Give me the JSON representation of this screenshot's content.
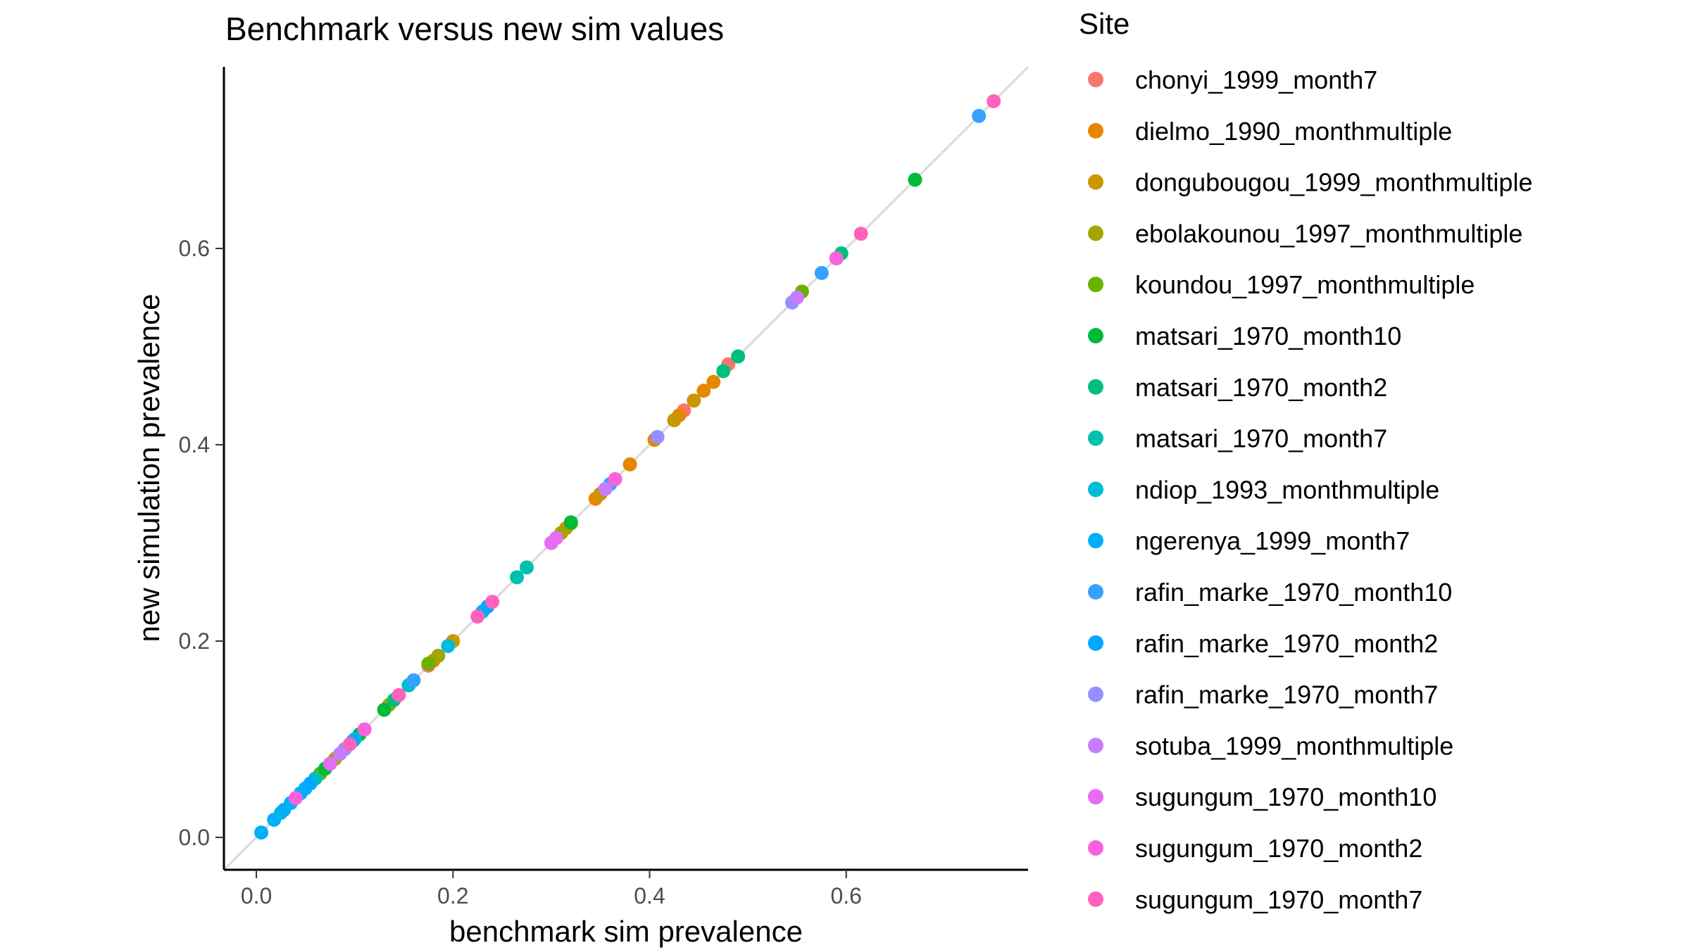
{
  "chart_data": {
    "type": "scatter",
    "title": "Benchmark versus new sim values",
    "xlabel": "benchmark sim prevalence",
    "ylabel": "new simulation prevalence",
    "xlim": [
      -0.033,
      0.785
    ],
    "ylim": [
      -0.033,
      0.785
    ],
    "xticks": [
      0.0,
      0.2,
      0.4,
      0.6
    ],
    "yticks": [
      0.0,
      0.2,
      0.4,
      0.6
    ],
    "x_tick_labels": [
      "0.0",
      "0.2",
      "0.4",
      "0.6"
    ],
    "y_tick_labels": [
      "0.0",
      "0.2",
      "0.4",
      "0.6"
    ],
    "reference_line": {
      "type": "identity",
      "color": "#d9d9d9"
    },
    "grid": false,
    "legend_title": "Site",
    "legend_position": "right",
    "series": [
      {
        "name": "chonyi_1999_month7",
        "color": "#F8766D",
        "values": [
          [
            0.155,
            0.155
          ],
          [
            0.175,
            0.175
          ],
          [
            0.435,
            0.435
          ],
          [
            0.48,
            0.482
          ]
        ]
      },
      {
        "name": "dielmo_1990_monthmultiple",
        "color": "#E58700",
        "values": [
          [
            0.18,
            0.18
          ],
          [
            0.345,
            0.345
          ],
          [
            0.38,
            0.38
          ],
          [
            0.405,
            0.405
          ],
          [
            0.43,
            0.43
          ],
          [
            0.455,
            0.455
          ],
          [
            0.465,
            0.464
          ]
        ]
      },
      {
        "name": "dongubougou_1999_monthmultiple",
        "color": "#C99800",
        "values": [
          [
            0.2,
            0.2
          ],
          [
            0.315,
            0.315
          ],
          [
            0.35,
            0.35
          ],
          [
            0.425,
            0.425
          ],
          [
            0.445,
            0.445
          ]
        ]
      },
      {
        "name": "ebolakounou_1997_monthmultiple",
        "color": "#A3A500",
        "values": [
          [
            0.08,
            0.08
          ],
          [
            0.135,
            0.135
          ],
          [
            0.185,
            0.185
          ],
          [
            0.31,
            0.31
          ]
        ]
      },
      {
        "name": "koundou_1997_monthmultiple",
        "color": "#6BB100",
        "values": [
          [
            0.065,
            0.065
          ],
          [
            0.175,
            0.177
          ],
          [
            0.32,
            0.32
          ],
          [
            0.555,
            0.556
          ]
        ]
      },
      {
        "name": "matsari_1970_month10",
        "color": "#00BA38",
        "values": [
          [
            0.07,
            0.07
          ],
          [
            0.105,
            0.105
          ],
          [
            0.13,
            0.13
          ],
          [
            0.32,
            0.321
          ],
          [
            0.67,
            0.67
          ]
        ]
      },
      {
        "name": "matsari_1970_month2",
        "color": "#00BF7D",
        "values": [
          [
            0.14,
            0.14
          ],
          [
            0.475,
            0.475
          ],
          [
            0.49,
            0.49
          ],
          [
            0.595,
            0.595
          ]
        ]
      },
      {
        "name": "matsari_1970_month7",
        "color": "#00C0AF",
        "values": [
          [
            0.06,
            0.06
          ],
          [
            0.265,
            0.265
          ],
          [
            0.275,
            0.275
          ],
          [
            0.59,
            0.59
          ]
        ]
      },
      {
        "name": "ndiop_1993_monthmultiple",
        "color": "#00BCD8",
        "values": [
          [
            0.195,
            0.195
          ],
          [
            0.155,
            0.155
          ],
          [
            0.1,
            0.1
          ],
          [
            0.025,
            0.025
          ]
        ]
      },
      {
        "name": "ngerenya_1999_month7",
        "color": "#00B0F6",
        "values": [
          [
            0.005,
            0.005
          ],
          [
            0.018,
            0.018
          ],
          [
            0.028,
            0.028
          ],
          [
            0.035,
            0.035
          ],
          [
            0.045,
            0.045
          ],
          [
            0.05,
            0.05
          ],
          [
            0.09,
            0.09
          ],
          [
            0.23,
            0.23
          ]
        ]
      },
      {
        "name": "rafin_marke_1970_month10",
        "color": "#35A2FF",
        "values": [
          [
            0.16,
            0.16
          ],
          [
            0.36,
            0.36
          ],
          [
            0.575,
            0.575
          ],
          [
            0.735,
            0.735
          ]
        ]
      },
      {
        "name": "rafin_marke_1970_month2",
        "color": "#00A9FF",
        "values": [
          [
            0.055,
            0.055
          ],
          [
            0.098,
            0.098
          ],
          [
            0.235,
            0.235
          ]
        ]
      },
      {
        "name": "rafin_marke_1970_month7",
        "color": "#9590FF",
        "values": [
          [
            0.09,
            0.09
          ],
          [
            0.408,
            0.408
          ],
          [
            0.545,
            0.545
          ]
        ]
      },
      {
        "name": "sotuba_1999_monthmultiple",
        "color": "#C77CFF",
        "values": [
          [
            0.085,
            0.085
          ],
          [
            0.355,
            0.355
          ],
          [
            0.55,
            0.55
          ]
        ]
      },
      {
        "name": "sugungum_1970_month10",
        "color": "#E76BF3",
        "values": [
          [
            0.075,
            0.075
          ],
          [
            0.3,
            0.3
          ],
          [
            0.305,
            0.305
          ]
        ]
      },
      {
        "name": "sugungum_1970_month2",
        "color": "#FA62DB",
        "values": [
          [
            0.04,
            0.04
          ],
          [
            0.11,
            0.11
          ],
          [
            0.365,
            0.365
          ],
          [
            0.59,
            0.59
          ]
        ]
      },
      {
        "name": "sugungum_1970_month7",
        "color": "#FF62BC",
        "values": [
          [
            0.095,
            0.095
          ],
          [
            0.145,
            0.145
          ],
          [
            0.225,
            0.225
          ],
          [
            0.24,
            0.24
          ],
          [
            0.615,
            0.615
          ],
          [
            0.75,
            0.75
          ]
        ]
      }
    ]
  }
}
